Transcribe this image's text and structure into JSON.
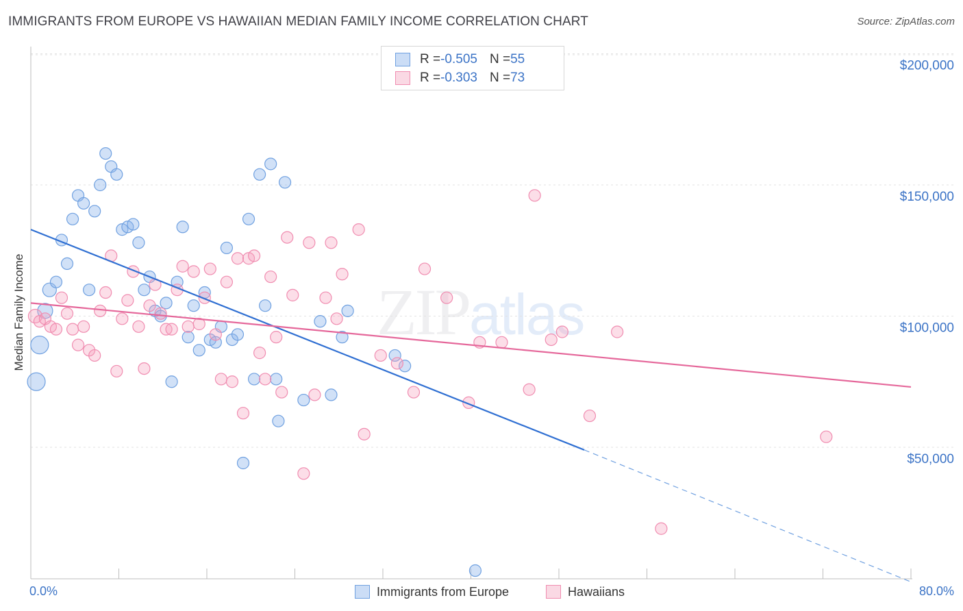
{
  "title": "IMMIGRANTS FROM EUROPE VS HAWAIIAN MEDIAN FAMILY INCOME CORRELATION CHART",
  "source": "Source: ZipAtlas.com",
  "watermark": {
    "zip": "ZIP",
    "atlas": "atlas"
  },
  "legend": {
    "rows": [
      {
        "r_label": "R = ",
        "r_value": "-0.505",
        "n_label": "N = ",
        "n_value": "55",
        "color": "#6fa0e0"
      },
      {
        "r_label": "R = ",
        "r_value": "-0.303",
        "n_label": "N = ",
        "n_value": "73",
        "color": "#f08cb0"
      }
    ]
  },
  "chart_data": {
    "type": "scatter",
    "title": "IMMIGRANTS FROM EUROPE VS HAWAIIAN MEDIAN FAMILY INCOME CORRELATION CHART",
    "xlabel": "",
    "ylabel": "Median Family Income",
    "xlim": [
      0,
      80
    ],
    "ylim": [
      0,
      205000
    ],
    "x_ticks_labels": [
      "0.0%",
      "80.0%"
    ],
    "y_ticks": [
      50000,
      100000,
      150000,
      200000
    ],
    "y_tick_labels": [
      "$50,000",
      "$100,000",
      "$150,000",
      "$200,000"
    ],
    "grid": true,
    "legend_position": "top-center",
    "series": [
      {
        "name": "Immigrants from Europe",
        "color": "#6fa0e0",
        "fill": "rgba(140,180,235,0.40)",
        "r": -0.505,
        "n": 55,
        "trend": {
          "x": [
            0,
            50.3
          ],
          "y": [
            133000,
            49000
          ],
          "dashed_to": [
            80,
            0
          ]
        },
        "points": [
          [
            0.5,
            75000
          ],
          [
            0.8,
            89000
          ],
          [
            1.3,
            102000
          ],
          [
            1.7,
            110000
          ],
          [
            2.3,
            113000
          ],
          [
            2.8,
            129000
          ],
          [
            3.3,
            120000
          ],
          [
            3.8,
            137000
          ],
          [
            4.3,
            146000
          ],
          [
            4.8,
            143000
          ],
          [
            5.3,
            110000
          ],
          [
            5.8,
            140000
          ],
          [
            6.3,
            150000
          ],
          [
            6.8,
            162000
          ],
          [
            7.3,
            157000
          ],
          [
            7.8,
            154000
          ],
          [
            8.3,
            133000
          ],
          [
            8.8,
            134000
          ],
          [
            9.3,
            135000
          ],
          [
            9.8,
            128000
          ],
          [
            10.3,
            110000
          ],
          [
            10.8,
            115000
          ],
          [
            11.3,
            102000
          ],
          [
            11.8,
            100000
          ],
          [
            12.3,
            105000
          ],
          [
            12.8,
            75000
          ],
          [
            13.3,
            113000
          ],
          [
            13.8,
            134000
          ],
          [
            14.3,
            92000
          ],
          [
            14.8,
            104000
          ],
          [
            15.3,
            87000
          ],
          [
            15.8,
            109000
          ],
          [
            16.3,
            91000
          ],
          [
            16.8,
            90000
          ],
          [
            17.3,
            96000
          ],
          [
            17.8,
            126000
          ],
          [
            18.3,
            91000
          ],
          [
            18.8,
            93000
          ],
          [
            19.3,
            44000
          ],
          [
            19.8,
            137000
          ],
          [
            20.3,
            76000
          ],
          [
            20.8,
            154000
          ],
          [
            21.3,
            104000
          ],
          [
            21.8,
            158000
          ],
          [
            22.3,
            76000
          ],
          [
            22.5,
            60000
          ],
          [
            23.1,
            151000
          ],
          [
            24.8,
            68000
          ],
          [
            26.3,
            98000
          ],
          [
            27.3,
            70000
          ],
          [
            28.3,
            92000
          ],
          [
            28.8,
            102000
          ],
          [
            33.1,
            85000
          ],
          [
            34.0,
            81000
          ],
          [
            40.4,
            3000
          ]
        ]
      },
      {
        "name": "Hawaiians",
        "color": "#f08cb0",
        "fill": "rgba(245,160,190,0.35)",
        "r": -0.303,
        "n": 73,
        "trend": {
          "x": [
            0,
            80
          ],
          "y": [
            105000,
            73000
          ]
        },
        "points": [
          [
            0.4,
            100000
          ],
          [
            0.8,
            98000
          ],
          [
            1.3,
            99000
          ],
          [
            1.8,
            96000
          ],
          [
            2.3,
            95000
          ],
          [
            2.8,
            107000
          ],
          [
            3.3,
            101000
          ],
          [
            3.8,
            95000
          ],
          [
            4.3,
            89000
          ],
          [
            4.8,
            96000
          ],
          [
            5.3,
            87000
          ],
          [
            5.8,
            85000
          ],
          [
            6.3,
            102000
          ],
          [
            6.8,
            109000
          ],
          [
            7.3,
            123000
          ],
          [
            7.8,
            79000
          ],
          [
            8.3,
            99000
          ],
          [
            8.8,
            106000
          ],
          [
            9.3,
            117000
          ],
          [
            9.8,
            96000
          ],
          [
            10.3,
            80000
          ],
          [
            10.8,
            104000
          ],
          [
            11.3,
            112000
          ],
          [
            11.8,
            101000
          ],
          [
            12.3,
            95000
          ],
          [
            12.8,
            95000
          ],
          [
            13.3,
            110000
          ],
          [
            13.8,
            119000
          ],
          [
            14.3,
            96000
          ],
          [
            14.8,
            117000
          ],
          [
            15.3,
            97000
          ],
          [
            15.8,
            107000
          ],
          [
            16.3,
            118000
          ],
          [
            16.8,
            93000
          ],
          [
            17.3,
            76000
          ],
          [
            17.8,
            113000
          ],
          [
            18.3,
            75000
          ],
          [
            18.8,
            122000
          ],
          [
            19.3,
            63000
          ],
          [
            19.8,
            122000
          ],
          [
            20.3,
            123000
          ],
          [
            20.8,
            86000
          ],
          [
            21.3,
            76000
          ],
          [
            21.8,
            115000
          ],
          [
            22.3,
            92000
          ],
          [
            22.8,
            71000
          ],
          [
            23.3,
            130000
          ],
          [
            23.8,
            108000
          ],
          [
            24.8,
            40000
          ],
          [
            25.3,
            128000
          ],
          [
            25.8,
            70000
          ],
          [
            26.8,
            107000
          ],
          [
            27.3,
            128000
          ],
          [
            27.8,
            99000
          ],
          [
            28.3,
            116000
          ],
          [
            29.8,
            133000
          ],
          [
            30.3,
            55000
          ],
          [
            31.8,
            85000
          ],
          [
            33.3,
            82000
          ],
          [
            34.8,
            71000
          ],
          [
            35.8,
            118000
          ],
          [
            37.8,
            107000
          ],
          [
            39.8,
            67000
          ],
          [
            40.8,
            90000
          ],
          [
            42.8,
            90000
          ],
          [
            45.3,
            72000
          ],
          [
            45.8,
            146000
          ],
          [
            47.3,
            91000
          ],
          [
            48.3,
            94000
          ],
          [
            50.8,
            62000
          ],
          [
            53.3,
            94000
          ],
          [
            57.3,
            19000
          ],
          [
            72.3,
            54000
          ]
        ]
      }
    ]
  }
}
